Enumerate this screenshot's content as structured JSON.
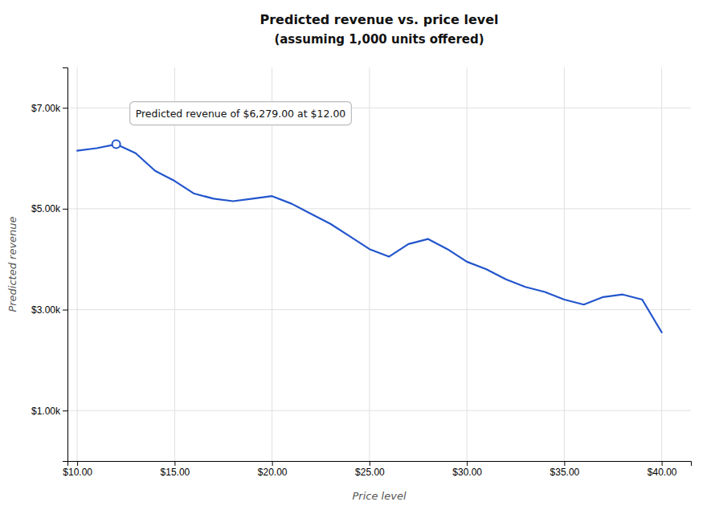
{
  "chart_data": {
    "type": "line",
    "title": "Predicted revenue vs. price level",
    "subtitle": "(assuming 1,000 units offered)",
    "xlabel": "Price level",
    "ylabel": "Predicted revenue",
    "x": [
      10,
      11,
      12,
      13,
      14,
      15,
      16,
      17,
      18,
      19,
      20,
      21,
      22,
      23,
      24,
      25,
      26,
      27,
      28,
      29,
      30,
      31,
      32,
      33,
      34,
      35,
      36,
      37,
      38,
      39,
      40
    ],
    "values": [
      6150,
      6200,
      6279,
      6100,
      5750,
      5550,
      5300,
      5200,
      5150,
      5200,
      5250,
      5100,
      4900,
      4700,
      4450,
      4200,
      4050,
      4300,
      4400,
      4200,
      3950,
      3800,
      3600,
      3450,
      3350,
      3200,
      3100,
      3250,
      3300,
      3200,
      2550
    ],
    "color": "#2255cc",
    "xlim": [
      9.5,
      41.5
    ],
    "ylim": [
      0,
      7800
    ],
    "xticks": [
      {
        "value": 10,
        "label": "$10.00"
      },
      {
        "value": 15,
        "label": "$15.00"
      },
      {
        "value": 20,
        "label": "$20.00"
      },
      {
        "value": 25,
        "label": "$25.00"
      },
      {
        "value": 30,
        "label": "$30.00"
      },
      {
        "value": 35,
        "label": "$35.00"
      },
      {
        "value": 40,
        "label": "$40.00"
      }
    ],
    "yticks": [
      {
        "value": 1000,
        "label": "$1.00k"
      },
      {
        "value": 3000,
        "label": "$3.00k"
      },
      {
        "value": 5000,
        "label": "$5.00k"
      },
      {
        "value": 7000,
        "label": "$7.00k"
      }
    ],
    "grid": true,
    "annotations": [
      {
        "text": "Predicted revenue of $6,279.00 at $12.00",
        "x": 12,
        "y": 6279
      }
    ]
  }
}
